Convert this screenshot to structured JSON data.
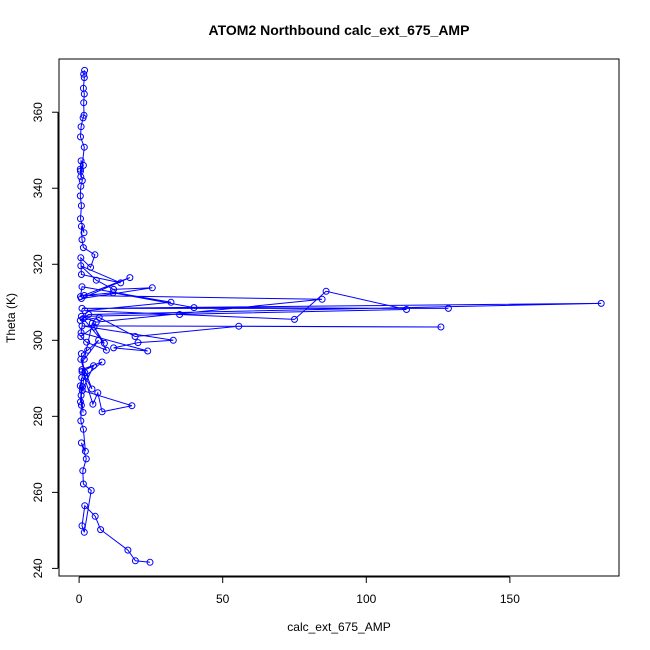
{
  "chart_data": {
    "type": "line",
    "title": "ATOM2 Northbound calc_ext_675_AMP",
    "xlabel": "calc_ext_675_AMP",
    "ylabel": "Theta (K)",
    "xlim": [
      -7,
      188
    ],
    "ylim": [
      238,
      374
    ],
    "xticks": [
      0,
      50,
      100,
      150
    ],
    "yticks": [
      240,
      260,
      280,
      300,
      320,
      340,
      360
    ],
    "line_color": "#0000ff",
    "marker": "open-circle",
    "grid": false,
    "legend": "none",
    "series": [
      {
        "x": [
          24.7,
          19.6,
          17.0,
          7.5,
          5.6,
          2.0,
          1.0,
          1.8,
          4.2,
          1.5,
          1.3,
          2.5,
          0.8,
          2.2,
          1.5,
          0.6,
          0.8,
          0.7,
          1.4,
          0.4,
          0.9,
          0.5,
          1.2,
          2.0,
          0.6,
          4.5,
          1.0,
          5.0,
          1.1,
          18.4,
          8.0,
          6.5,
          4.8,
          1.0,
          8.0,
          2.1,
          0.8,
          3.0,
          6.8,
          1.8,
          4.6,
          9.5,
          2.6,
          0.6,
          5.2,
          8.8,
          1.4,
          0.7,
          23.9,
          12.0,
          20.5,
          32.8,
          1.0,
          126.0,
          55.6,
          19.5,
          7.0,
          0.4,
          3.3,
          181.8,
          1.0,
          128.6,
          40.0,
          11.8,
          1.8,
          84.6,
          6.0,
          0.8,
          114.0,
          86.0,
          75.0,
          35.0,
          2.0,
          32.0,
          1.0,
          0.5,
          17.7,
          0.8,
          25.5,
          12.0,
          6.0,
          0.6,
          14.5,
          0.8,
          0.6,
          4.0,
          5.5,
          1.5,
          1.0,
          0.8,
          1.7,
          0.5,
          0.8,
          0.4,
          0.6,
          1.1,
          0.5,
          1.5,
          0.7,
          0.4,
          0.6,
          1.8,
          0.5,
          0.7,
          1.4,
          1.7,
          1.6,
          1.8,
          1.5,
          1.8,
          1.6,
          1.9
        ],
        "y": [
          241.6,
          242.0,
          244.8,
          250.2,
          253.7,
          256.5,
          251.2,
          249.5,
          260.5,
          262.2,
          265.7,
          268.8,
          273.0,
          270.8,
          276.6,
          278.8,
          282.9,
          285.5,
          281.0,
          288.0,
          290.2,
          283.8,
          287.8,
          291.5,
          295.0,
          287.2,
          291.8,
          293.3,
          286.8,
          282.8,
          281.2,
          286.2,
          283.2,
          292.3,
          294.3,
          290.5,
          296.5,
          297.4,
          300.0,
          295.0,
          304.5,
          297.4,
          299.5,
          301.0,
          303.5,
          299.2,
          305.7,
          302.0,
          297.2,
          298.0,
          299.4,
          300.0,
          303.8,
          303.5,
          303.7,
          301.0,
          306.0,
          305.2,
          306.8,
          309.7,
          308.4,
          308.4,
          308.6,
          312.5,
          311.8,
          310.8,
          304.8,
          306.3,
          308.1,
          312.9,
          305.5,
          306.8,
          307.8,
          310.0,
          314.1,
          311.5,
          316.5,
          311.0,
          313.8,
          313.4,
          315.8,
          319.6,
          315.1,
          317.3,
          321.7,
          319.2,
          322.5,
          324.4,
          326.5,
          330.0,
          328.3,
          332.0,
          335.4,
          338.0,
          340.5,
          342.0,
          344.5,
          346.0,
          347.2,
          345.0,
          343.0,
          350.8,
          353.5,
          356.2,
          358.5,
          359.2,
          362.5,
          364.8,
          366.3,
          369.1,
          370.0,
          371.0
        ]
      }
    ]
  }
}
